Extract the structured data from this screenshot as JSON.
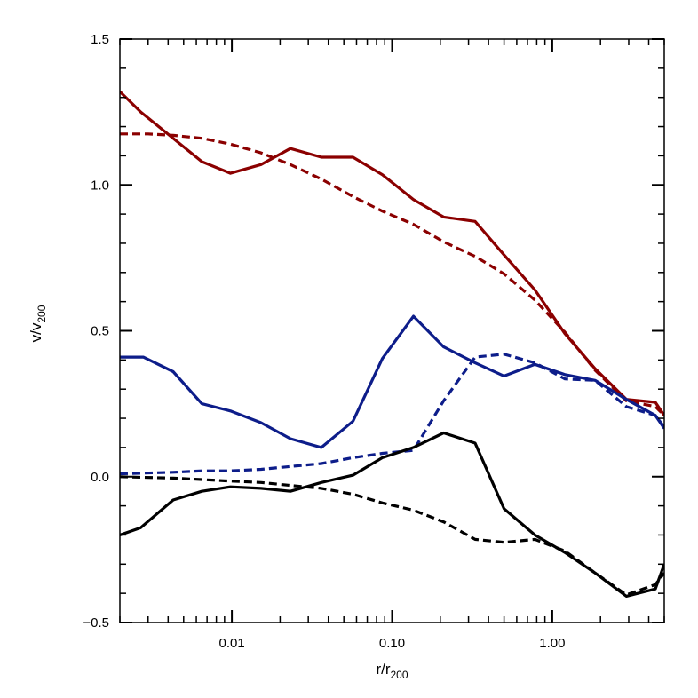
{
  "chart_data": {
    "type": "line",
    "xlabel": {
      "base": "r/r",
      "sub": "200"
    },
    "ylabel": {
      "base": "v/v",
      "sub": "200"
    },
    "xscale": "log",
    "xlim": [
      0.002,
      5.0
    ],
    "ylim": [
      -0.5,
      1.5
    ],
    "grid": false,
    "legend": "none",
    "x_ticks": [
      {
        "value": 0.01,
        "label": "0.01"
      },
      {
        "value": 0.1,
        "label": "0.10"
      },
      {
        "value": 1.0,
        "label": "1.00"
      }
    ],
    "y_ticks": [
      {
        "value": -0.5,
        "label": "−0.5"
      },
      {
        "value": 0.0,
        "label": "0.0"
      },
      {
        "value": 0.5,
        "label": "0.5"
      },
      {
        "value": 1.0,
        "label": "1.0"
      },
      {
        "value": 1.5,
        "label": "1.5"
      }
    ],
    "series": [
      {
        "color": "#8b0000",
        "style": "solid",
        "x": [
          0.002,
          0.0027,
          0.0043,
          0.0065,
          0.0098,
          0.0152,
          0.0232,
          0.0362,
          0.057,
          0.087,
          0.136,
          0.21,
          0.33,
          0.5,
          0.78,
          1.2,
          1.85,
          2.9,
          4.4,
          5.0
        ],
        "y": [
          1.32,
          1.25,
          1.16,
          1.08,
          1.04,
          1.07,
          1.125,
          1.095,
          1.095,
          1.035,
          0.95,
          0.89,
          0.875,
          0.76,
          0.64,
          0.49,
          0.37,
          0.265,
          0.255,
          0.21
        ]
      },
      {
        "color": "#8b0000",
        "style": "dashed",
        "x": [
          0.002,
          0.003,
          0.0043,
          0.0065,
          0.0098,
          0.0152,
          0.0232,
          0.0362,
          0.057,
          0.087,
          0.136,
          0.21,
          0.33,
          0.5,
          0.78,
          1.2,
          1.85,
          2.9,
          4.4,
          5.0
        ],
        "y": [
          1.175,
          1.175,
          1.17,
          1.16,
          1.14,
          1.11,
          1.07,
          1.02,
          0.96,
          0.91,
          0.865,
          0.805,
          0.755,
          0.695,
          0.605,
          0.495,
          0.365,
          0.26,
          0.24,
          0.21
        ]
      },
      {
        "color": "#0d1d8a",
        "style": "solid",
        "x": [
          0.002,
          0.0028,
          0.0043,
          0.0065,
          0.0098,
          0.0152,
          0.0232,
          0.0362,
          0.057,
          0.087,
          0.136,
          0.21,
          0.33,
          0.5,
          0.78,
          1.2,
          1.85,
          2.9,
          4.4,
          5.0
        ],
        "y": [
          0.41,
          0.41,
          0.36,
          0.25,
          0.225,
          0.185,
          0.13,
          0.1,
          0.19,
          0.405,
          0.55,
          0.445,
          0.39,
          0.345,
          0.385,
          0.35,
          0.33,
          0.265,
          0.21,
          0.165
        ]
      },
      {
        "color": "#0d1d8a",
        "style": "dashed",
        "x": [
          0.002,
          0.0043,
          0.0065,
          0.0098,
          0.0152,
          0.0232,
          0.0362,
          0.057,
          0.087,
          0.136,
          0.21,
          0.33,
          0.5,
          0.78,
          1.2,
          1.85,
          2.9,
          4.4,
          5.0
        ],
        "y": [
          0.01,
          0.015,
          0.02,
          0.02,
          0.025,
          0.035,
          0.045,
          0.065,
          0.08,
          0.09,
          0.26,
          0.41,
          0.42,
          0.39,
          0.335,
          0.33,
          0.24,
          0.21,
          0.17
        ]
      },
      {
        "color": "#000000",
        "style": "solid",
        "x": [
          0.002,
          0.0027,
          0.0043,
          0.0065,
          0.0098,
          0.0152,
          0.0232,
          0.0362,
          0.057,
          0.087,
          0.136,
          0.21,
          0.33,
          0.5,
          0.78,
          1.2,
          1.85,
          2.9,
          4.4,
          5.0
        ],
        "y": [
          -0.2,
          -0.175,
          -0.08,
          -0.05,
          -0.035,
          -0.04,
          -0.05,
          -0.02,
          0.005,
          0.065,
          0.1,
          0.15,
          0.115,
          -0.11,
          -0.2,
          -0.26,
          -0.33,
          -0.41,
          -0.385,
          -0.3
        ]
      },
      {
        "color": "#000000",
        "style": "dashed",
        "x": [
          0.002,
          0.0043,
          0.0065,
          0.0098,
          0.0152,
          0.0232,
          0.0362,
          0.057,
          0.087,
          0.136,
          0.21,
          0.33,
          0.5,
          0.78,
          1.2,
          1.85,
          2.9,
          4.4,
          5.0
        ],
        "y": [
          0.0,
          -0.005,
          -0.01,
          -0.015,
          -0.02,
          -0.03,
          -0.04,
          -0.06,
          -0.09,
          -0.115,
          -0.155,
          -0.215,
          -0.225,
          -0.215,
          -0.255,
          -0.33,
          -0.405,
          -0.37,
          -0.33
        ]
      }
    ]
  }
}
